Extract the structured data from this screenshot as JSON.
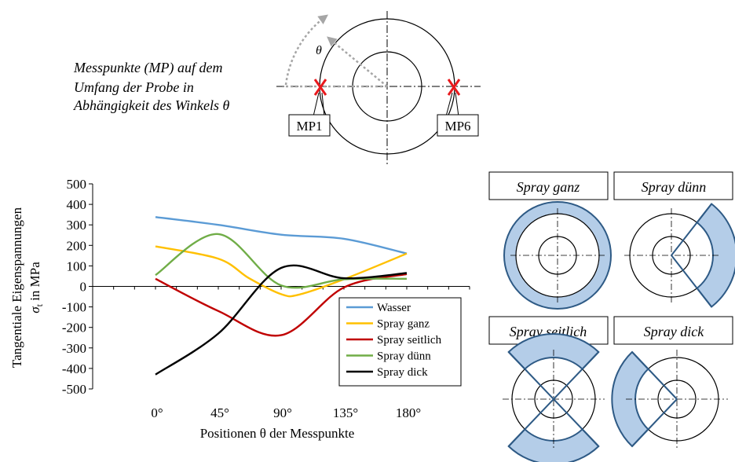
{
  "caption": {
    "lines": [
      "Messpunkte (MP) auf dem",
      "Umfang der Probe in",
      "Abhängigkeit des Winkels θ"
    ]
  },
  "top_diagram": {
    "theta_label": "θ",
    "mp_left": "MP1",
    "mp_right": "MP6",
    "marker_symbol": "X",
    "marker_color": "#e8191d",
    "arrow_color": "#a6a6a6"
  },
  "schematics": [
    {
      "label": "Spray ganz"
    },
    {
      "label": "Spray dünn"
    },
    {
      "label": "Spray seitlich"
    },
    {
      "label": "Spray dick"
    }
  ],
  "colors": {
    "spray_fill": "#b4cde8",
    "spray_stroke": "#2e5a85"
  },
  "chart_data": {
    "type": "line",
    "ylabel_line1": "Tangentiale Eigenspannungen",
    "ylabel_line2_symbol": "σ",
    "ylabel_line2_subscript": "t",
    "ylabel_line2_text": " in MPa",
    "xlabel": "Positionen θ der Messpunkte",
    "categories": [
      "0°",
      "45°",
      "90°",
      "135°",
      "180°"
    ],
    "x": [
      0,
      45,
      90,
      135,
      180
    ],
    "xlim": [
      -45,
      225
    ],
    "ylim": [
      -500,
      500
    ],
    "yticks": [
      500,
      400,
      300,
      200,
      100,
      0,
      -100,
      -200,
      -300,
      -400,
      -500
    ],
    "grid": false,
    "legend_position": "bottom-right",
    "series": [
      {
        "name": "Wasser",
        "color": "#5b9bd5",
        "points": [
          [
            0,
            338
          ],
          [
            45,
            300
          ],
          [
            90,
            252
          ],
          [
            135,
            232
          ],
          [
            180,
            160
          ]
        ]
      },
      {
        "name": "Spray ganz",
        "color": "#ffc000",
        "points": [
          [
            0,
            195
          ],
          [
            45,
            135
          ],
          [
            67,
            40
          ],
          [
            90,
            -38
          ],
          [
            103,
            -40
          ],
          [
            135,
            35
          ],
          [
            180,
            160
          ]
        ]
      },
      {
        "name": "Spray seitlich",
        "color": "#c00000",
        "points": [
          [
            0,
            37
          ],
          [
            45,
            -120
          ],
          [
            90,
            -238
          ],
          [
            135,
            -5
          ],
          [
            180,
            60
          ]
        ]
      },
      {
        "name": "Spray dünn",
        "color": "#70ad47",
        "points": [
          [
            0,
            55
          ],
          [
            45,
            255
          ],
          [
            90,
            5
          ],
          [
            135,
            35
          ],
          [
            180,
            37
          ]
        ]
      },
      {
        "name": "Spray dick",
        "color": "#000000",
        "points": [
          [
            0,
            -430
          ],
          [
            45,
            -230
          ],
          [
            90,
            90
          ],
          [
            135,
            40
          ],
          [
            180,
            65
          ]
        ]
      }
    ]
  }
}
